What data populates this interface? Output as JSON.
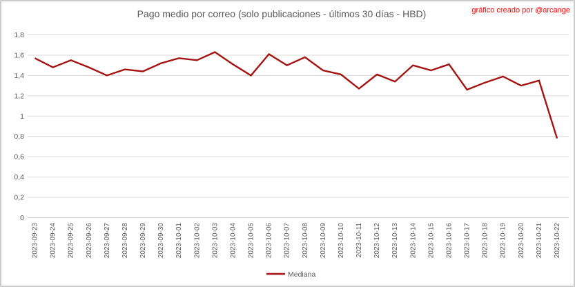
{
  "header": {
    "title": "Pago medio por correo (solo publicaciones - últimos 30 días - HBD)",
    "title_color": "#595959",
    "credit": "gráfico creado por @arcange",
    "credit_color": "#FF0000"
  },
  "chart_data": {
    "type": "line",
    "title": "Pago medio por correo (solo publicaciones - últimos 30 días - HBD)",
    "categories": [
      "2023-09-23",
      "2023-09-24",
      "2023-09-25",
      "2023-09-26",
      "2023-09-27",
      "2023-09-28",
      "2023-09-29",
      "2023-09-30",
      "2023-10-01",
      "2023-10-02",
      "2023-10-03",
      "2023-10-04",
      "2023-10-05",
      "2023-10-06",
      "2023-10-07",
      "2023-10-08",
      "2023-10-09",
      "2023-10-10",
      "2023-10-11",
      "2023-10-12",
      "2023-10-13",
      "2023-10-14",
      "2023-10-15",
      "2023-10-16",
      "2023-10-17",
      "2023-10-18",
      "2023-10-19",
      "2023-10-20",
      "2023-10-21",
      "2023-10-22"
    ],
    "series": [
      {
        "name": "Mediana",
        "color": "#A51212",
        "values": [
          1.57,
          1.48,
          1.55,
          1.48,
          1.4,
          1.46,
          1.44,
          1.52,
          1.57,
          1.55,
          1.63,
          1.51,
          1.4,
          1.61,
          1.5,
          1.58,
          1.45,
          1.41,
          1.27,
          1.41,
          1.34,
          1.5,
          1.45,
          1.51,
          1.26,
          1.33,
          1.39,
          1.3,
          1.35,
          0.78
        ]
      }
    ],
    "xlabel": "",
    "ylabel": "",
    "ylim": [
      0,
      1.8
    ],
    "ytick_step": 0.2,
    "ytick_labels": [
      "0",
      "0,2",
      "0,4",
      "0,6",
      "0,8",
      "1",
      "1,2",
      "1,4",
      "1,6",
      "1,8"
    ],
    "grid": "horizontal",
    "legend_position": "bottom",
    "colors": {
      "gridline": "#D9D9D9",
      "axis_line": "#C6C6C6",
      "axis_text": "#595959",
      "background": "#FFFFFF"
    }
  }
}
